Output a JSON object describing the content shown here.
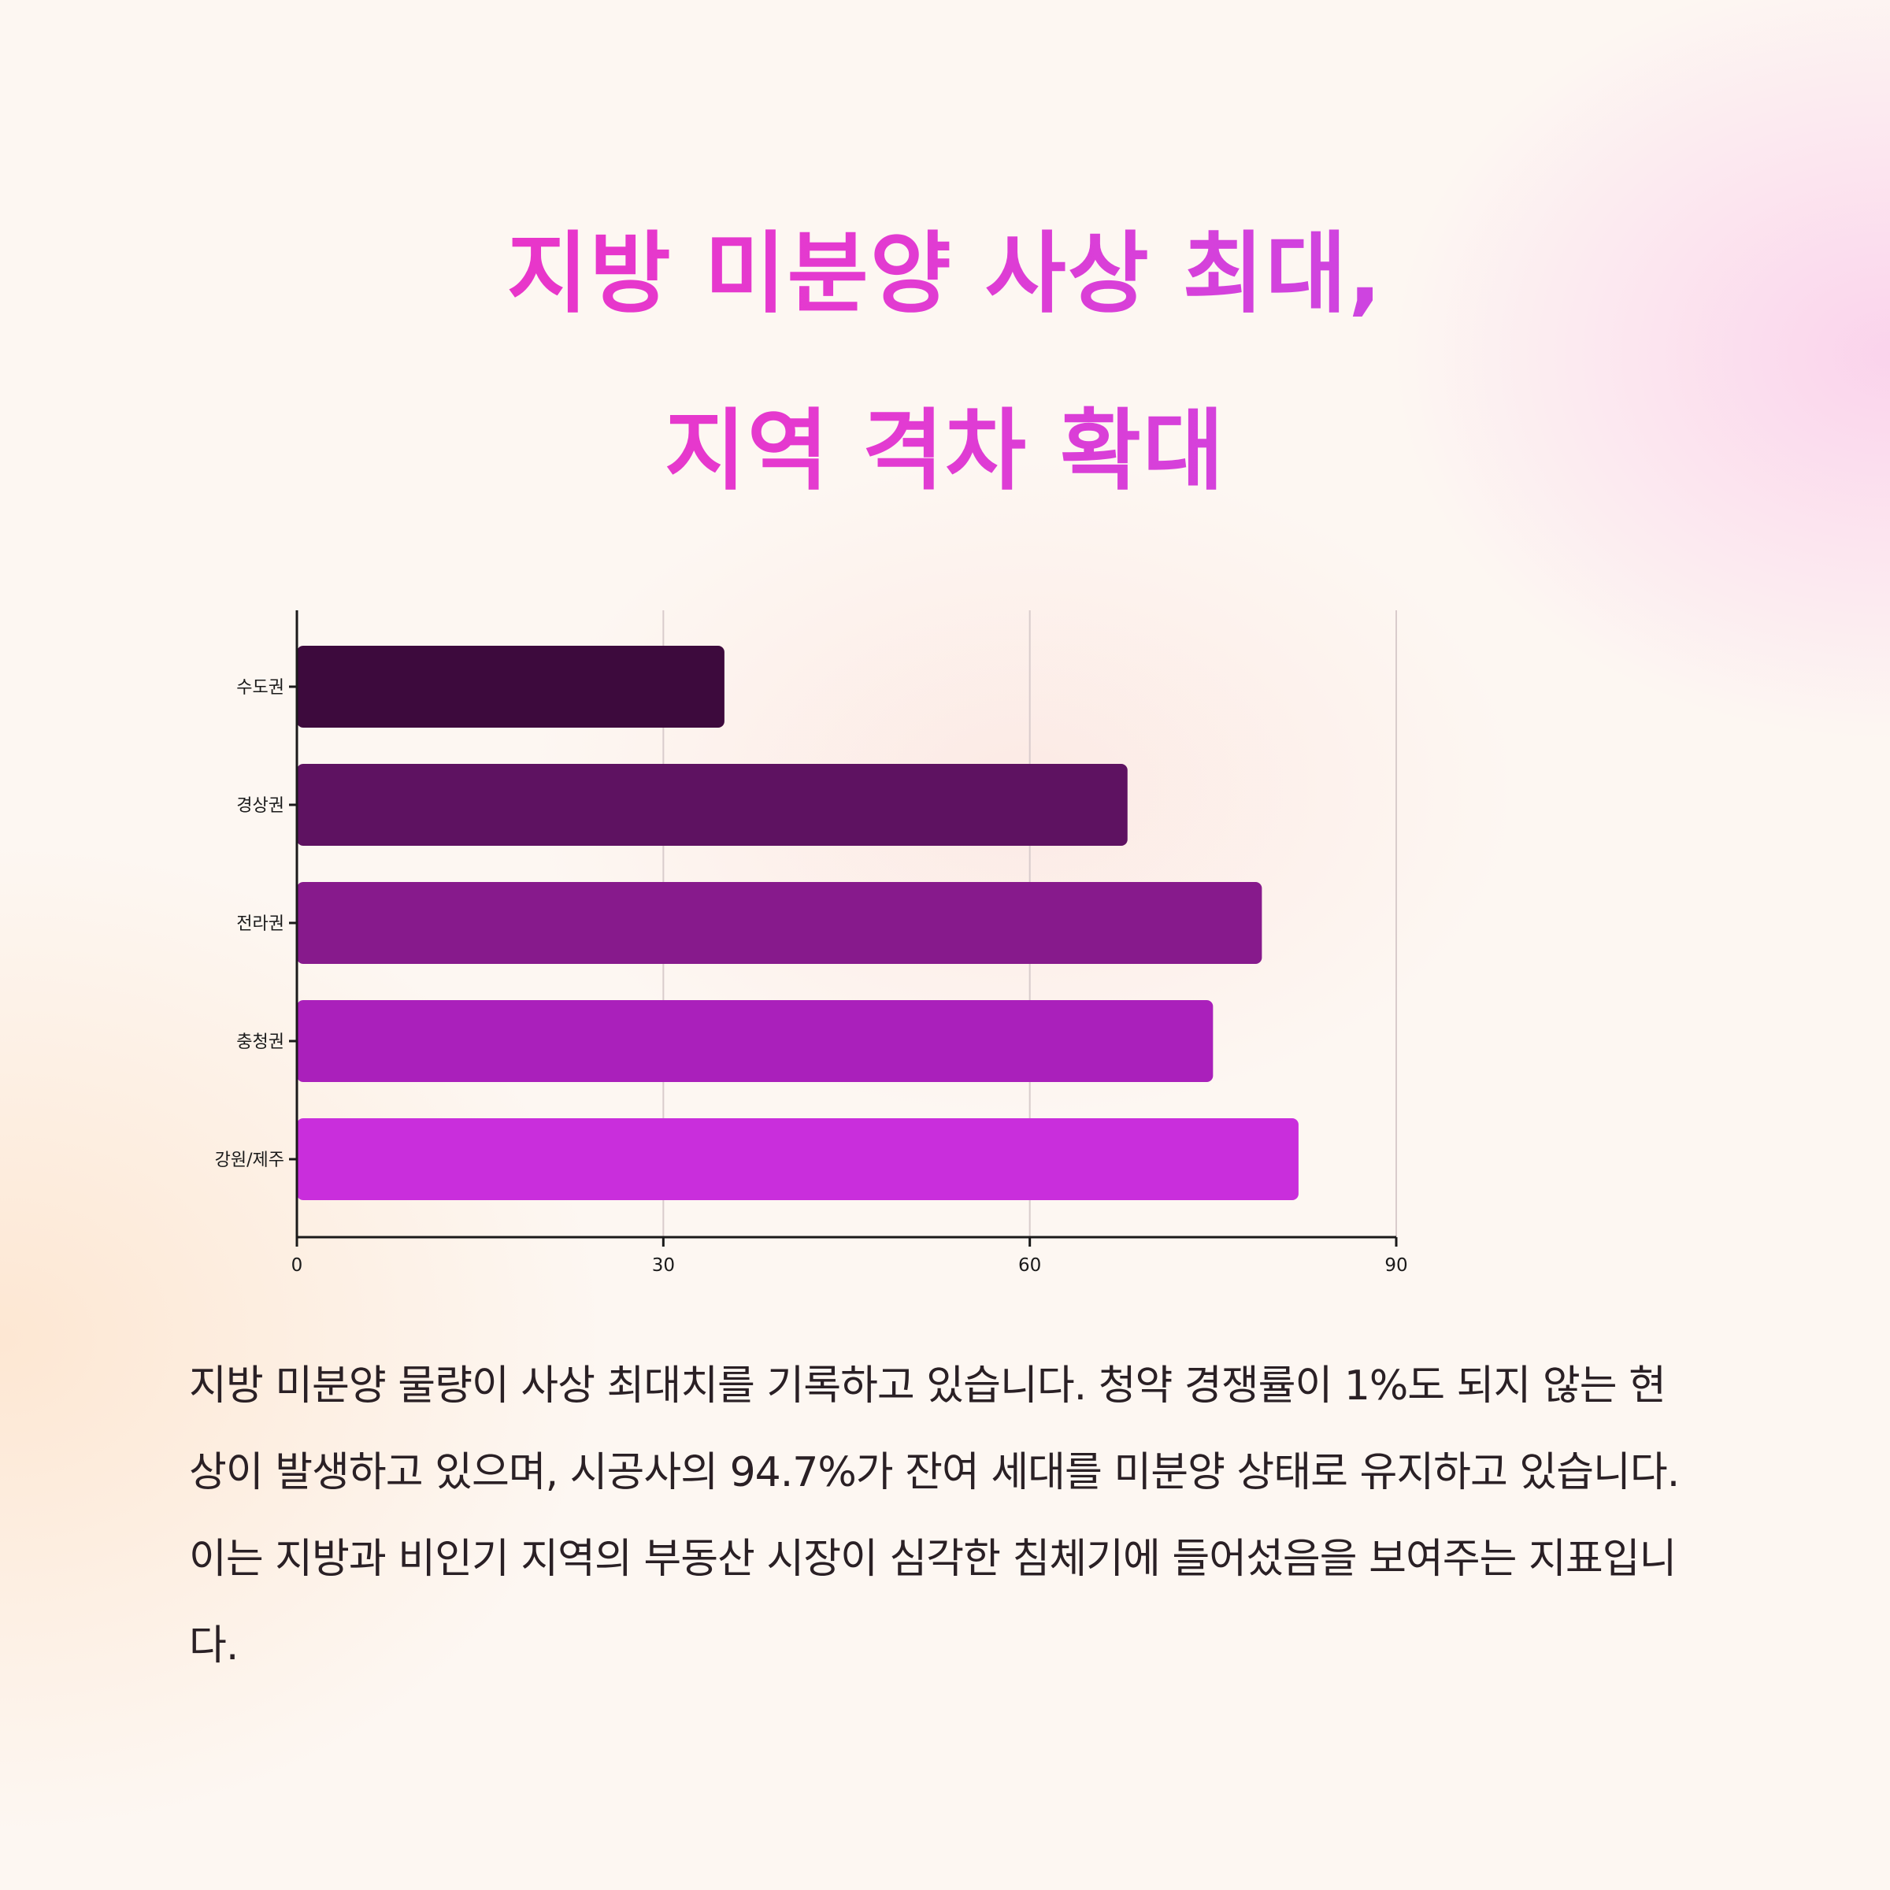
{
  "title_lines": [
    "지방 미분양 사상 최대,",
    "지역 격차 확대"
  ],
  "chart_data": {
    "type": "bar",
    "orientation": "horizontal",
    "categories": [
      "수도권",
      "경상권",
      "전라권",
      "충청권",
      "강원/제주"
    ],
    "values": [
      35,
      68,
      79,
      75,
      82
    ],
    "xlim": [
      0,
      90
    ],
    "xticks": [
      0,
      30,
      60,
      90
    ],
    "grid": true,
    "colors": [
      "#3d0a3d",
      "#5e1261",
      "#871a8c",
      "#aa20bb",
      "#c92edc"
    ]
  },
  "body_text": "지방 미분양 물량이 사상 최대치를 기록하고 있습니다. 청약 경쟁률이 1%도 되지 않는 현상이 발생하고 있으며, 시공사의 94.7%가 잔여 세대를 미분양 상태로 유지하고 있습니다. 이는 지방과 비인기 지역의 부동산 시장이 심각한 침체기에 들어섰음을 보여주는 지표입니다."
}
